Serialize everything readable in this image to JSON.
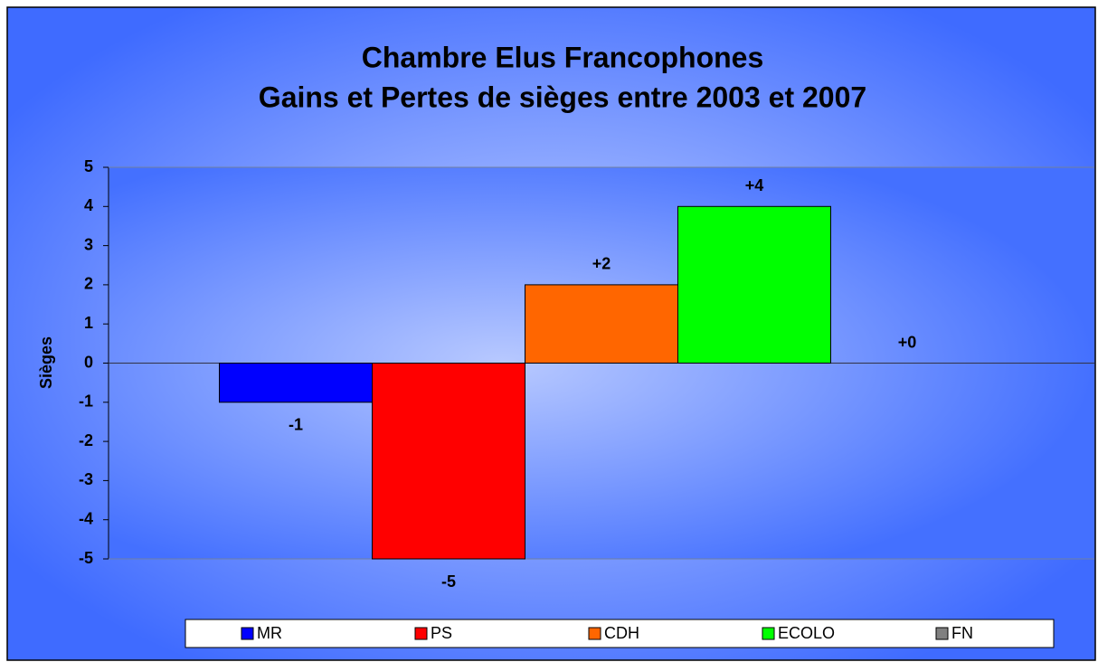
{
  "chart_data": {
    "type": "bar",
    "title": "Chambre Elus Francophones",
    "subtitle": "Gains et Pertes de sièges entre 2003 et 2007",
    "y_label": "Sièges",
    "series": [
      {
        "name": "MR",
        "color": "#0000ff",
        "values": [
          -1
        ],
        "value_labels": [
          "-1"
        ]
      },
      {
        "name": "PS",
        "color": "#ff0000",
        "values": [
          -5
        ],
        "value_labels": [
          "-5"
        ]
      },
      {
        "name": "CDH",
        "color": "#ff6600",
        "values": [
          2
        ],
        "value_labels": [
          "+2"
        ]
      },
      {
        "name": "ECOLO",
        "color": "#00ff00",
        "values": [
          4
        ],
        "value_labels": [
          "+4"
        ]
      },
      {
        "name": "FN",
        "color": "#808080",
        "values": [
          0
        ],
        "value_labels": [
          "+0"
        ]
      }
    ],
    "ylim": [
      -5,
      5
    ],
    "yticks": [
      -5,
      -4,
      -3,
      -2,
      -1,
      0,
      1,
      2,
      3,
      4,
      5
    ],
    "grid": false,
    "legend": "bottom"
  }
}
